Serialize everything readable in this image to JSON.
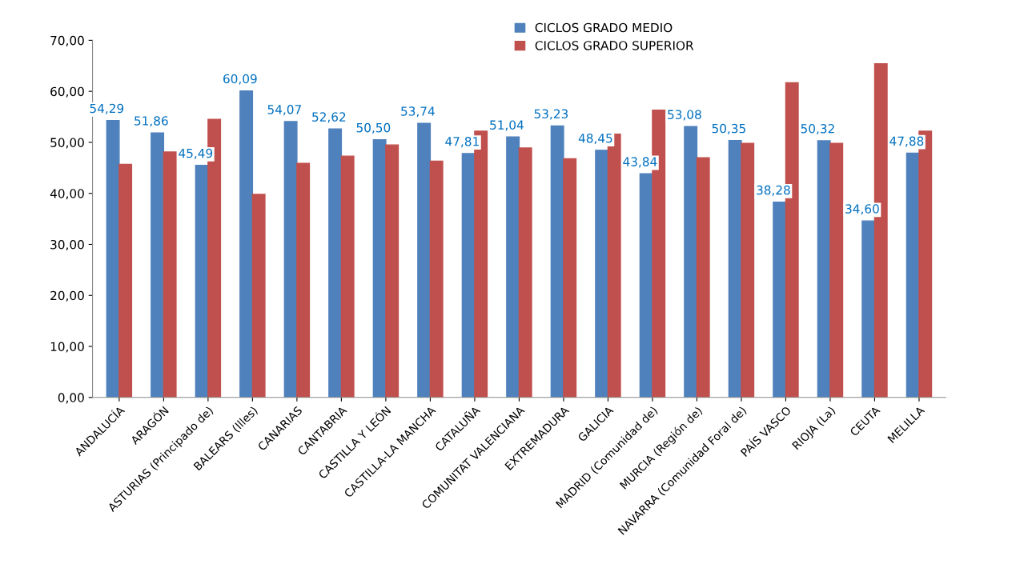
{
  "chart_data": {
    "type": "bar",
    "categories": [
      "ANDALUCÍA",
      "ARAGÓN",
      "ASTURIAS (Principado de)",
      "BALEARS (Illes)",
      "CANARIAS",
      "CANTABRIA",
      "CASTILLA Y LEÓN",
      "CASTILLA-LA MANCHA",
      "CATALUÑA",
      "COMUNITAT VALENCIANA",
      "EXTREMADURA",
      "GALICIA",
      "MADRID (Comunidad de)",
      "MURCIA (Región de)",
      "NAVARRA (Comunidad Foral de)",
      "PAÍS VASCO",
      "RIOJA (La)",
      "CEUTA",
      "MELILLA"
    ],
    "series": [
      {
        "name": "CICLOS GRADO MEDIO",
        "color": "#4f81bd",
        "values": [
          54.29,
          51.86,
          45.49,
          60.09,
          54.07,
          52.62,
          50.5,
          53.74,
          47.81,
          51.04,
          53.23,
          48.45,
          43.84,
          53.08,
          50.35,
          38.28,
          50.32,
          34.6,
          47.88
        ],
        "value_labels": [
          "54,29",
          "51,86",
          "45,49",
          "60,09",
          "54,07",
          "52,62",
          "50,50",
          "53,74",
          "47,81",
          "51,04",
          "53,23",
          "48,45",
          "43,84",
          "53,08",
          "50,35",
          "38,28",
          "50,32",
          "34,60",
          "47,88"
        ]
      },
      {
        "name": "CICLOS GRADO SUPERIOR",
        "color": "#c0504d",
        "values": [
          45.7,
          48.1,
          54.5,
          39.8,
          45.9,
          47.3,
          49.5,
          46.3,
          52.2,
          48.9,
          46.8,
          51.6,
          56.3,
          47.0,
          49.8,
          61.7,
          49.8,
          65.4,
          52.2
        ]
      }
    ],
    "ylim": [
      0,
      70
    ],
    "yticks": [
      {
        "value": 0,
        "label": "0,00"
      },
      {
        "value": 10,
        "label": "10,00"
      },
      {
        "value": 20,
        "label": "20,00"
      },
      {
        "value": 30,
        "label": "30,00"
      },
      {
        "value": 40,
        "label": "40,00"
      },
      {
        "value": 50,
        "label": "50,00"
      },
      {
        "value": 60,
        "label": "60,00"
      },
      {
        "value": 70,
        "label": "70,00"
      }
    ],
    "legend": "top right",
    "grid": false
  }
}
